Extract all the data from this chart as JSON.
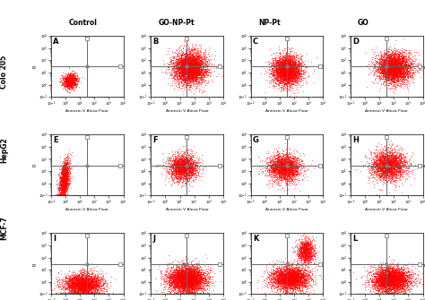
{
  "col_labels": [
    "Control",
    "GO-NP-Pt",
    "NP-Pt",
    "GO"
  ],
  "row_labels": [
    "Colo 205",
    "HepG2",
    "MCF-7"
  ],
  "panel_letters": [
    [
      "A",
      "B",
      "C",
      "D"
    ],
    [
      "E",
      "F",
      "G",
      "H"
    ],
    [
      "I",
      "J",
      "K",
      "L"
    ]
  ],
  "xlabel": "Annexin V Alexa Fluor",
  "ylabel": "PI",
  "dot_color": "#FF0000",
  "background_color": "#FFFFFF",
  "line_color": "#666666",
  "xmin": 0.1,
  "xmax": 10000,
  "ymin": 0.1,
  "ymax": 10000,
  "gate_x_val": 30,
  "gate_y_val": 30,
  "figsize": [
    4.74,
    3.35
  ],
  "dpi": 100,
  "panels": {
    "A": {
      "type": "colo_ctrl",
      "n": 1200
    },
    "B": {
      "type": "colo_treat1",
      "n": 5000
    },
    "C": {
      "type": "colo_treat2",
      "n": 4000
    },
    "D": {
      "type": "colo_treat3",
      "n": 4500
    },
    "E": {
      "type": "hepg2_ctrl",
      "n": 1800
    },
    "F": {
      "type": "hepg2_treat1",
      "n": 2500
    },
    "G": {
      "type": "hepg2_treat2",
      "n": 2800
    },
    "H": {
      "type": "hepg2_treat3",
      "n": 3000
    },
    "I": {
      "type": "mcf7_ctrl",
      "n": 3500
    },
    "J": {
      "type": "mcf7_treat1",
      "n": 5000
    },
    "K": {
      "type": "mcf7_treat2",
      "n": 5000
    },
    "L": {
      "type": "mcf7_treat3",
      "n": 4500
    }
  }
}
